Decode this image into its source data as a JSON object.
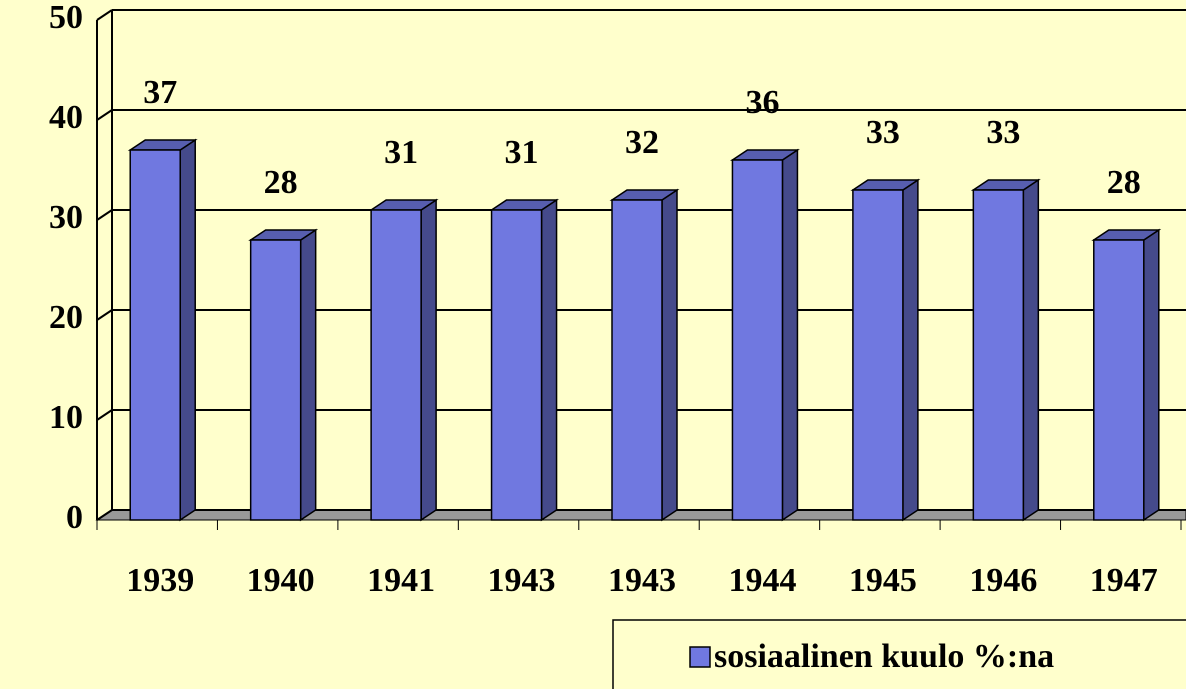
{
  "chart_data": {
    "type": "bar",
    "categories": [
      "1939",
      "1940",
      "1941",
      "1943",
      "1943",
      "1944",
      "1945",
      "1946",
      "1947"
    ],
    "series": [
      {
        "name": "sosiaalinen kuulo %:na",
        "color": "#7078e0",
        "values": [
          37,
          28,
          31,
          31,
          32,
          36,
          33,
          33,
          28
        ]
      }
    ],
    "ylim": [
      0,
      50
    ],
    "yticks": [
      0,
      10,
      20,
      30,
      40,
      50
    ],
    "grid": true,
    "legend": "bottom-right"
  }
}
